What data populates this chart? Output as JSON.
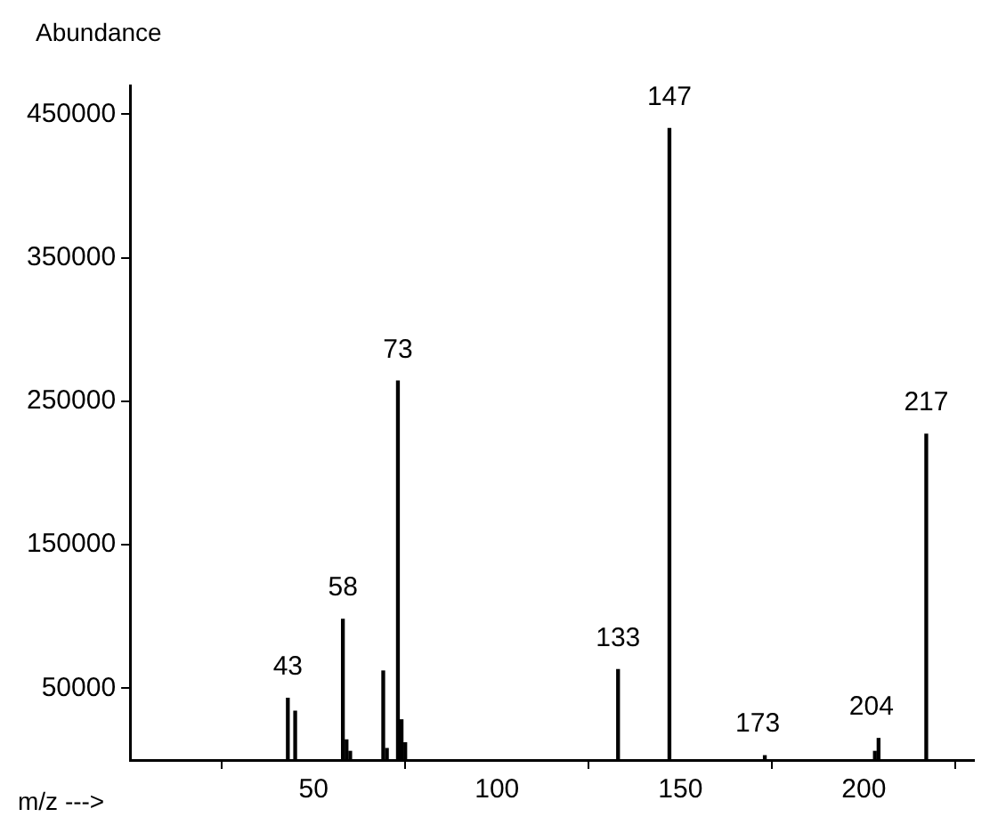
{
  "chart_data": {
    "type": "bar",
    "xlabel": "m/z --->",
    "ylabel": "Abundance",
    "x": [
      43,
      45,
      58,
      59,
      60,
      69,
      70,
      73,
      74,
      75,
      133,
      147,
      173,
      203,
      204,
      217
    ],
    "values": [
      43000,
      34000,
      98000,
      14000,
      6000,
      62000,
      8000,
      264000,
      28000,
      12000,
      63000,
      440000,
      3000,
      6000,
      15000,
      227000
    ],
    "annotations": [
      {
        "text": "43",
        "x": 43,
        "y": 43000
      },
      {
        "text": "58",
        "x": 58,
        "y": 98000
      },
      {
        "text": "73",
        "x": 73,
        "y": 264000
      },
      {
        "text": "133",
        "x": 133,
        "y": 63000
      },
      {
        "text": "147",
        "x": 147,
        "y": 440000
      },
      {
        "text": "173",
        "x": 173,
        "y": 3000
      },
      {
        "text": "204",
        "x": 204,
        "y": 15000
      },
      {
        "text": "217",
        "x": 217,
        "y": 227000
      }
    ],
    "color": "#000000",
    "xlim": [
      0,
      230
    ],
    "xticks": [
      50,
      100,
      150,
      200
    ],
    "ylim": [
      0,
      470000
    ],
    "yticks": [
      50000,
      150000,
      250000,
      350000,
      450000
    ],
    "grid": false,
    "legend": false
  }
}
